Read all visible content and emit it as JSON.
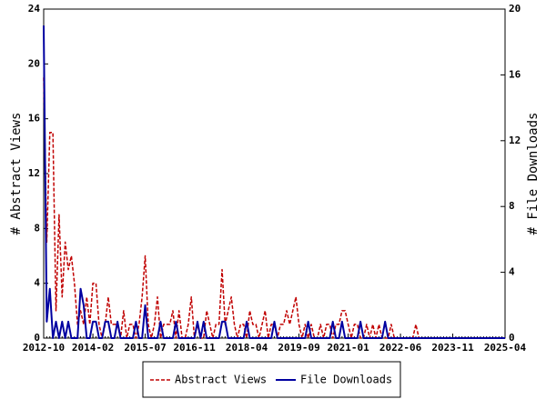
{
  "chart_data": {
    "type": "line",
    "categories": [
      "2012-10",
      null,
      null,
      null,
      null,
      null,
      null,
      null,
      null,
      null,
      null,
      null,
      null,
      null,
      null,
      null,
      "2014-02",
      null,
      null,
      null,
      null,
      null,
      null,
      null,
      null,
      null,
      null,
      null,
      null,
      null,
      null,
      null,
      null,
      "2015-07",
      null,
      null,
      null,
      null,
      null,
      null,
      null,
      null,
      null,
      null,
      null,
      null,
      null,
      null,
      null,
      "2016-11",
      null,
      null,
      null,
      null,
      null,
      null,
      null,
      null,
      null,
      null,
      null,
      null,
      null,
      null,
      null,
      null,
      "2018-04",
      null,
      null,
      null,
      null,
      null,
      null,
      null,
      null,
      null,
      null,
      null,
      null,
      null,
      null,
      null,
      null,
      "2019-09",
      null,
      null,
      null,
      null,
      null,
      null,
      null,
      null,
      null,
      null,
      null,
      null,
      null,
      null,
      null,
      "2021-01",
      null,
      null,
      null,
      null,
      null,
      null,
      null,
      null,
      null,
      null,
      null,
      null,
      null,
      null,
      null,
      null,
      "2022-06",
      null,
      null,
      null,
      null,
      null,
      null,
      null,
      null,
      null,
      null,
      null,
      null,
      null,
      null,
      null,
      null,
      "2023-11",
      null,
      null,
      null,
      null,
      null,
      null,
      null,
      null,
      null,
      null,
      null,
      null,
      null,
      null,
      null,
      null,
      "2025-04"
    ],
    "series": [
      {
        "name": "Abstract Views",
        "color": "#c00000",
        "axis": "y",
        "values": [
          19,
          7,
          15,
          15,
          2,
          9,
          3,
          7,
          5,
          6,
          4,
          1,
          2,
          1,
          3,
          1,
          4,
          4,
          1,
          0,
          1,
          3,
          1,
          1,
          1,
          0,
          2,
          0,
          1,
          1,
          0,
          1,
          3,
          6,
          1,
          0,
          1,
          3,
          0,
          1,
          1,
          1,
          2,
          0,
          2,
          0,
          0,
          1,
          3,
          0,
          1,
          0,
          0,
          2,
          1,
          0,
          1,
          1,
          5,
          1,
          2,
          3,
          1,
          0,
          1,
          1,
          0,
          2,
          1,
          1,
          0,
          1,
          2,
          0,
          1,
          1,
          0,
          1,
          1,
          2,
          1,
          2,
          3,
          1,
          0,
          1,
          0,
          1,
          0,
          0,
          1,
          0,
          1,
          1,
          0,
          1,
          1,
          2,
          2,
          1,
          0,
          1,
          1,
          0,
          0,
          1,
          0,
          1,
          0,
          1,
          0,
          0,
          0,
          1,
          0,
          0,
          0,
          0,
          0,
          0,
          0,
          1,
          0,
          0,
          0,
          0,
          0,
          0,
          0,
          0,
          0,
          0,
          0,
          0,
          0,
          0,
          0,
          0,
          0,
          0,
          0,
          0,
          0,
          0,
          0,
          0,
          0,
          0,
          0,
          0,
          0
        ]
      },
      {
        "name": "File Downloads",
        "color": "#0000a0",
        "axis": "y2",
        "values": [
          19,
          1,
          3,
          0,
          1,
          0,
          1,
          0,
          1,
          0,
          0,
          0,
          3,
          2,
          0,
          0,
          1,
          1,
          0,
          0,
          1,
          1,
          0,
          0,
          1,
          0,
          0,
          0,
          0,
          0,
          1,
          0,
          0,
          2,
          0,
          0,
          0,
          0,
          1,
          0,
          0,
          0,
          0,
          1,
          0,
          0,
          0,
          0,
          0,
          0,
          1,
          0,
          1,
          0,
          0,
          0,
          0,
          0,
          1,
          1,
          0,
          0,
          0,
          0,
          0,
          0,
          1,
          0,
          0,
          0,
          0,
          0,
          0,
          0,
          0,
          1,
          0,
          0,
          0,
          0,
          0,
          0,
          0,
          0,
          0,
          0,
          1,
          0,
          0,
          0,
          0,
          0,
          0,
          0,
          1,
          0,
          0,
          1,
          0,
          0,
          0,
          0,
          0,
          1,
          0,
          0,
          0,
          0,
          0,
          0,
          0,
          1,
          0,
          0,
          0,
          0,
          0,
          0,
          0,
          0,
          0,
          0,
          0,
          0,
          0,
          0,
          0,
          0,
          0,
          0,
          0,
          0,
          0,
          0,
          0,
          0,
          0,
          0,
          0,
          0,
          0,
          0,
          0,
          0,
          0,
          0,
          0,
          0,
          0,
          0,
          0
        ]
      }
    ],
    "ylabel": "# Abstract Views",
    "y2label": "# File Downloads",
    "ylim": [
      0,
      24
    ],
    "yticks": [
      0,
      4,
      8,
      12,
      16,
      20,
      24
    ],
    "y2lim": [
      0,
      20
    ],
    "y2ticks": [
      0,
      4,
      8,
      12,
      16,
      20
    ],
    "legend": "bottom"
  }
}
